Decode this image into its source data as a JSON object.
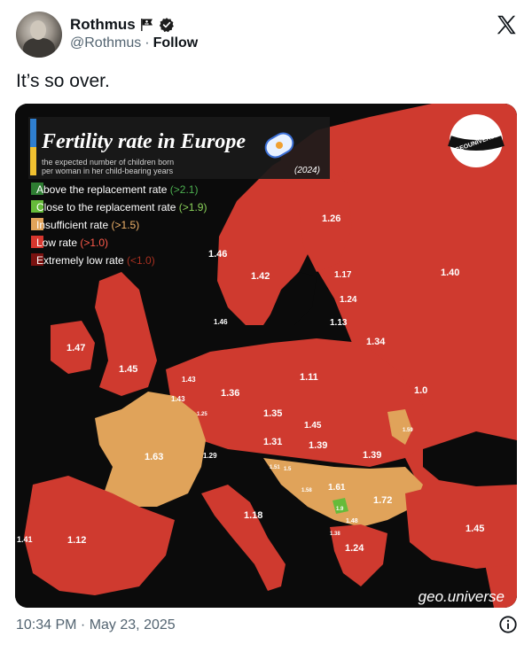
{
  "tweet": {
    "display_name": "Rothmus",
    "handle": "@Rothmus",
    "separator": "·",
    "follow_label": "Follow",
    "text": "It’s so over.",
    "timestamp": "10:34 PM · May 23, 2025",
    "icons": {
      "flag": "pirate-flag-icon",
      "verified": "verified-badge-icon",
      "logo": "x-logo-icon",
      "info": "info-icon"
    }
  },
  "map_image": {
    "title": "Fertility rate in Europe",
    "subtitle_line1": "the expected number of children born",
    "subtitle_line2": "per woman in her child-bearing years",
    "year": "(2024)",
    "badge_text": "GEOUNIVERSE",
    "watermark": "geo.universe",
    "legend": [
      {
        "label": "Above the replacement rate",
        "hint": "(>2.1)",
        "color": "#2e7d32"
      },
      {
        "label": "Close to the replacement rate",
        "hint": "(>1.9)",
        "color": "#66bb3a"
      },
      {
        "label": "Insufficient rate",
        "hint": "(>1.5)",
        "color": "#e0a35a"
      },
      {
        "label": "Low rate",
        "hint": "(>1.0)",
        "color": "#d7372e"
      },
      {
        "label": "Extremely low rate",
        "hint": "(<1.0)",
        "color": "#7a1210"
      }
    ],
    "values": {
      "norway": "1.46",
      "sweden": "1.42",
      "finland": "1.26",
      "russia": "1.40",
      "estonia": "1.17",
      "latvia": "1.24",
      "lithuania": "1.13",
      "belarus": "1.34",
      "ireland": "1.47",
      "uk": "1.45",
      "denmark": "1.46",
      "netherlands": "1.43",
      "belgium": "1.43",
      "luxembourg": "1.25",
      "germany": "1.36",
      "poland": "1.11",
      "ukraine": "1.0",
      "czechia": "1.35",
      "slovakia": "1.45",
      "austria": "1.31",
      "hungary": "1.39",
      "moldova": "1.59",
      "romania": "1.39",
      "france": "1.63",
      "switzerland": "1.29",
      "slovenia": "1.51",
      "croatia": "1.5",
      "bosnia": "1.58",
      "serbia": "1.61",
      "bulgaria": "1.72",
      "kosovo": "1.9",
      "montenegro": "1.48",
      "albania": "1.38",
      "macedonia": "1.24",
      "italy": "1.18",
      "turkey": "1.45",
      "portugal": "1.41",
      "spain": "1.12"
    }
  }
}
